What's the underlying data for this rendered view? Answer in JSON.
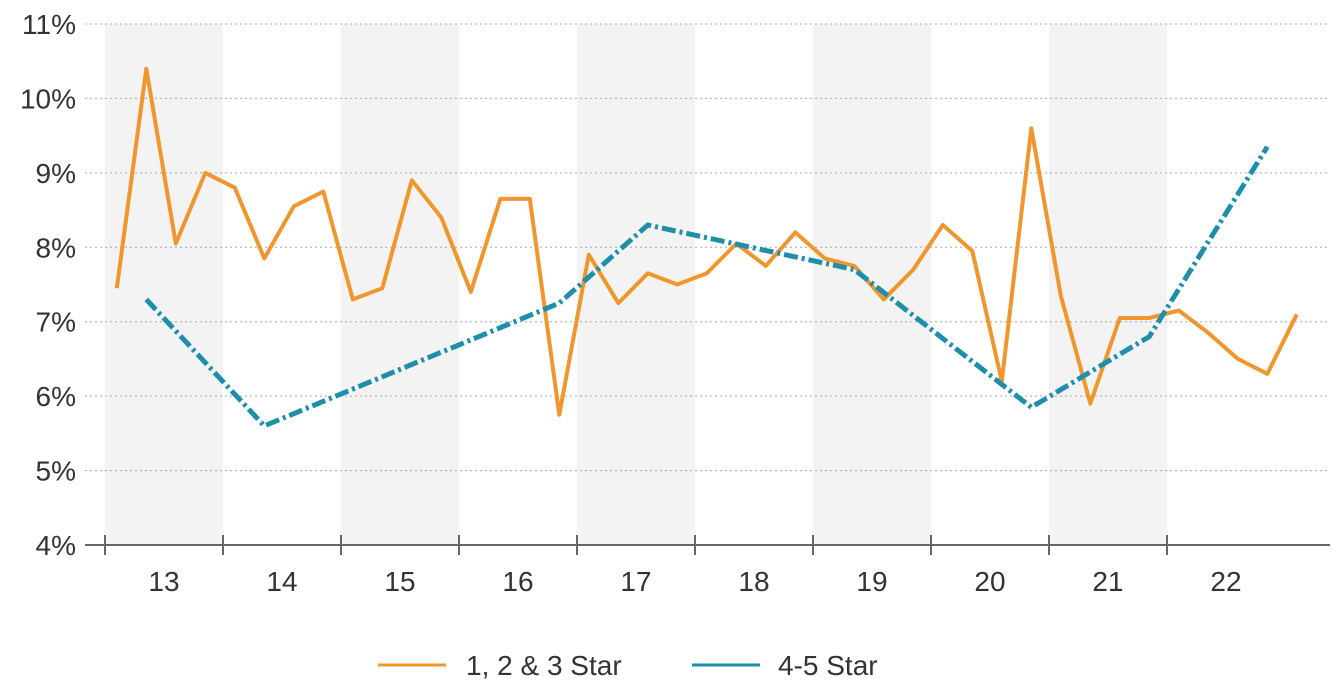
{
  "chart_data": {
    "type": "line",
    "title": "",
    "xlabel": "",
    "ylabel": "",
    "x_tick_labels": [
      "13",
      "14",
      "15",
      "16",
      "17",
      "18",
      "19",
      "20",
      "21",
      "22"
    ],
    "y_tick_labels": [
      "4%",
      "5%",
      "6%",
      "7%",
      "8%",
      "9%",
      "10%",
      "11%"
    ],
    "ylim": [
      4,
      11
    ],
    "xlim": [
      12.5,
      22.85
    ],
    "grid": "horizontal dotted",
    "alternating_year_bands": true,
    "legend_position": "bottom",
    "series": [
      {
        "name": "1, 2 & 3 Star",
        "color": "#F0962E",
        "style": "solid",
        "points": [
          [
            12.6,
            7.45
          ],
          [
            12.85,
            10.4
          ],
          [
            13.1,
            8.05
          ],
          [
            13.35,
            9.0
          ],
          [
            13.6,
            8.8
          ],
          [
            13.85,
            7.85
          ],
          [
            14.1,
            8.55
          ],
          [
            14.35,
            8.75
          ],
          [
            14.6,
            7.3
          ],
          [
            14.85,
            7.45
          ],
          [
            15.1,
            8.9
          ],
          [
            15.35,
            8.4
          ],
          [
            15.6,
            7.4
          ],
          [
            15.85,
            8.65
          ],
          [
            16.1,
            8.65
          ],
          [
            16.35,
            5.75
          ],
          [
            16.6,
            7.9
          ],
          [
            16.85,
            7.25
          ],
          [
            17.1,
            7.65
          ],
          [
            17.35,
            7.5
          ],
          [
            17.6,
            7.65
          ],
          [
            17.85,
            8.05
          ],
          [
            18.1,
            7.75
          ],
          [
            18.35,
            8.2
          ],
          [
            18.6,
            7.85
          ],
          [
            18.85,
            7.75
          ],
          [
            19.1,
            7.3
          ],
          [
            19.35,
            7.7
          ],
          [
            19.6,
            8.3
          ],
          [
            19.85,
            7.95
          ],
          [
            20.1,
            6.2
          ],
          [
            20.35,
            9.6
          ],
          [
            20.6,
            7.35
          ],
          [
            20.85,
            5.9
          ],
          [
            21.1,
            7.05
          ],
          [
            21.35,
            7.05
          ],
          [
            21.6,
            7.15
          ],
          [
            21.85,
            6.85
          ],
          [
            22.1,
            6.5
          ],
          [
            22.35,
            6.3
          ],
          [
            22.6,
            7.1
          ]
        ]
      },
      {
        "name": "4-5 Star",
        "color": "#1E8EAB",
        "style": "dash-dot",
        "points": [
          [
            12.85,
            7.3
          ],
          [
            13.85,
            5.6
          ],
          [
            16.35,
            7.25
          ],
          [
            17.1,
            8.3
          ],
          [
            18.85,
            7.7
          ],
          [
            20.35,
            5.85
          ],
          [
            21.35,
            6.8
          ],
          [
            22.35,
            9.35
          ]
        ]
      }
    ]
  },
  "legend": {
    "series_a_label": "1, 2 & 3 Star",
    "series_b_label": "4-5 Star"
  }
}
